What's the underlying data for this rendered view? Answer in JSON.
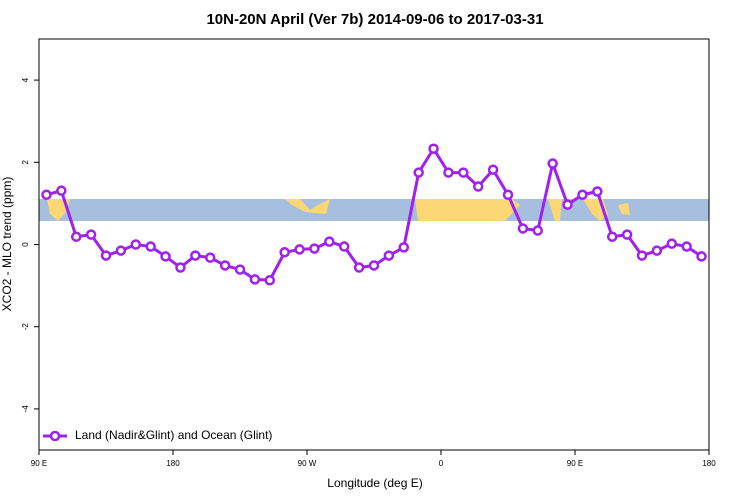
{
  "chart_data": {
    "type": "line",
    "title": "10N-20N April (Ver 7b)   2014-09-06 to 2017-03-31",
    "x_label": "Longitude (deg E)",
    "y_label": "XCO2 - MLO trend (ppm)",
    "x": [
      95,
      105,
      115,
      125,
      135,
      145,
      155,
      165,
      175,
      185,
      195,
      205,
      215,
      225,
      235,
      245,
      255,
      265,
      275,
      285,
      295,
      305,
      315,
      325,
      335,
      345,
      355,
      365,
      375,
      385,
      395,
      405,
      415,
      425,
      435,
      445,
      455,
      465,
      475,
      485,
      495,
      505,
      515,
      525,
      535
    ],
    "series": [
      {
        "name": "Land (Nadir&Glint) and Ocean (Glint)",
        "color": "#a020f0",
        "values": [
          1.21,
          1.31,
          0.19,
          0.24,
          -0.27,
          -0.15,
          0.0,
          -0.05,
          -0.29,
          -0.56,
          -0.27,
          -0.32,
          -0.51,
          -0.61,
          -0.85,
          -0.87,
          -0.19,
          -0.12,
          -0.1,
          0.07,
          -0.05,
          -0.56,
          -0.51,
          -0.27,
          -0.07,
          1.75,
          2.33,
          1.75,
          1.75,
          1.41,
          1.82,
          1.21,
          0.39,
          0.34,
          1.97,
          0.97,
          1.21,
          1.29,
          0.19,
          0.24,
          -0.27,
          -0.15,
          0.02,
          -0.05,
          -0.29
        ]
      }
    ],
    "xlim": [
      90,
      540
    ],
    "xticks": [
      {
        "value": 90,
        "label": "90 E"
      },
      180,
      {
        "value": 270,
        "label": "90 W"
      },
      {
        "value": 360,
        "label": "0"
      },
      {
        "value": 450,
        "label": "90 E"
      },
      {
        "value": 540,
        "label": "180"
      }
    ],
    "ylim": [
      -5,
      5
    ],
    "yticks": [
      -4,
      -2,
      0,
      2,
      4
    ],
    "legend": "bottom-left"
  }
}
